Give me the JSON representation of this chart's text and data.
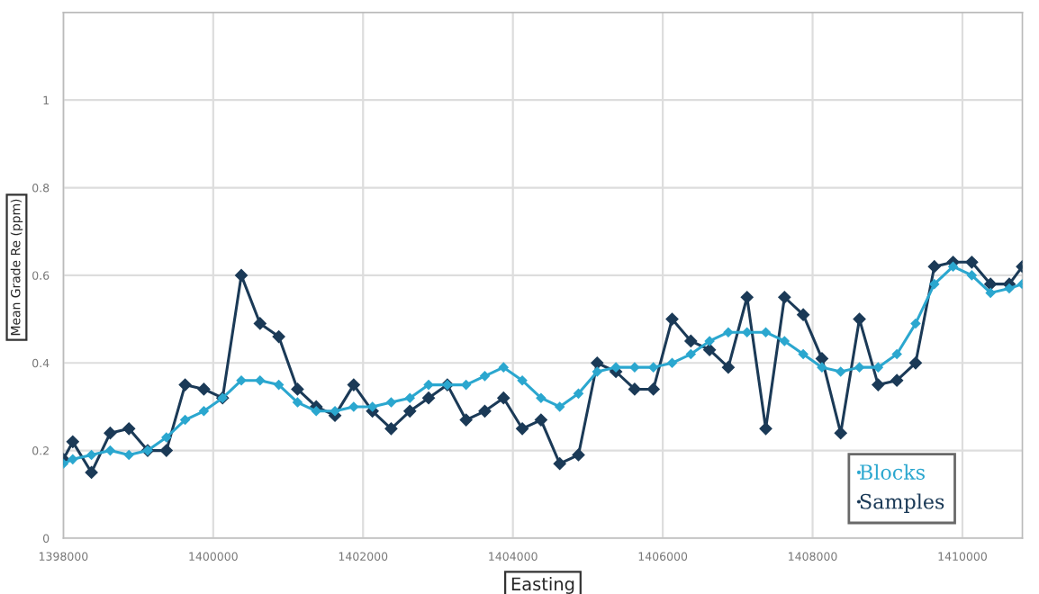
{
  "chart_data": {
    "type": "line",
    "xlabel": "Easting",
    "ylabel": "Mean Grade Re (ppm)",
    "x": [
      1398000,
      1398125,
      1398375,
      1398625,
      1398875,
      1399125,
      1399375,
      1399625,
      1399875,
      1400125,
      1400375,
      1400625,
      1400875,
      1401125,
      1401375,
      1401625,
      1401875,
      1402125,
      1402375,
      1402625,
      1402875,
      1403125,
      1403375,
      1403625,
      1403875,
      1404125,
      1404375,
      1404625,
      1404875,
      1405125,
      1405375,
      1405625,
      1405875,
      1406125,
      1406375,
      1406625,
      1406875,
      1407125,
      1407375,
      1407625,
      1407875,
      1408125,
      1408375,
      1408625,
      1408875,
      1409125,
      1409375,
      1409625,
      1409875,
      1410125,
      1410375,
      1410625,
      1410800
    ],
    "series": [
      {
        "name": "Blocks",
        "color": "#2ba7cf",
        "values": [
          0.17,
          0.18,
          0.19,
          0.2,
          0.19,
          0.2,
          0.23,
          0.27,
          0.29,
          0.32,
          0.36,
          0.36,
          0.35,
          0.31,
          0.29,
          0.29,
          0.3,
          0.3,
          0.31,
          0.32,
          0.35,
          0.35,
          0.35,
          0.37,
          0.39,
          0.36,
          0.32,
          0.3,
          0.33,
          0.38,
          0.39,
          0.39,
          0.39,
          0.4,
          0.42,
          0.45,
          0.47,
          0.47,
          0.47,
          0.45,
          0.42,
          0.39,
          0.38,
          0.39,
          0.39,
          0.42,
          0.49,
          0.58,
          0.62,
          0.6,
          0.56,
          0.57,
          0.58
        ]
      },
      {
        "name": "Samples",
        "color": "#1b3a57",
        "values": [
          0.18,
          0.22,
          0.15,
          0.24,
          0.25,
          0.2,
          0.2,
          0.35,
          0.34,
          0.32,
          0.6,
          0.49,
          0.46,
          0.34,
          0.3,
          0.28,
          0.35,
          0.29,
          0.25,
          0.29,
          0.32,
          0.35,
          0.27,
          0.29,
          0.32,
          0.25,
          0.27,
          0.17,
          0.19,
          0.4,
          0.38,
          0.34,
          0.34,
          0.5,
          0.45,
          0.43,
          0.39,
          0.55,
          0.25,
          0.55,
          0.51,
          0.41,
          0.24,
          0.5,
          0.35,
          0.36,
          0.4,
          0.62,
          0.63,
          0.63,
          0.58,
          0.58,
          0.62
        ]
      }
    ],
    "marker": "diamond",
    "line_style": "solid",
    "xlim": [
      1398000,
      1410800
    ],
    "xticks": [
      1398000,
      1400000,
      1402000,
      1404000,
      1406000,
      1408000,
      1410000
    ],
    "ylim": [
      0,
      1.2
    ],
    "yticks": [
      0,
      0.2,
      0.4,
      0.6,
      0.8,
      1
    ],
    "grid": true,
    "legend": "bottom right"
  }
}
